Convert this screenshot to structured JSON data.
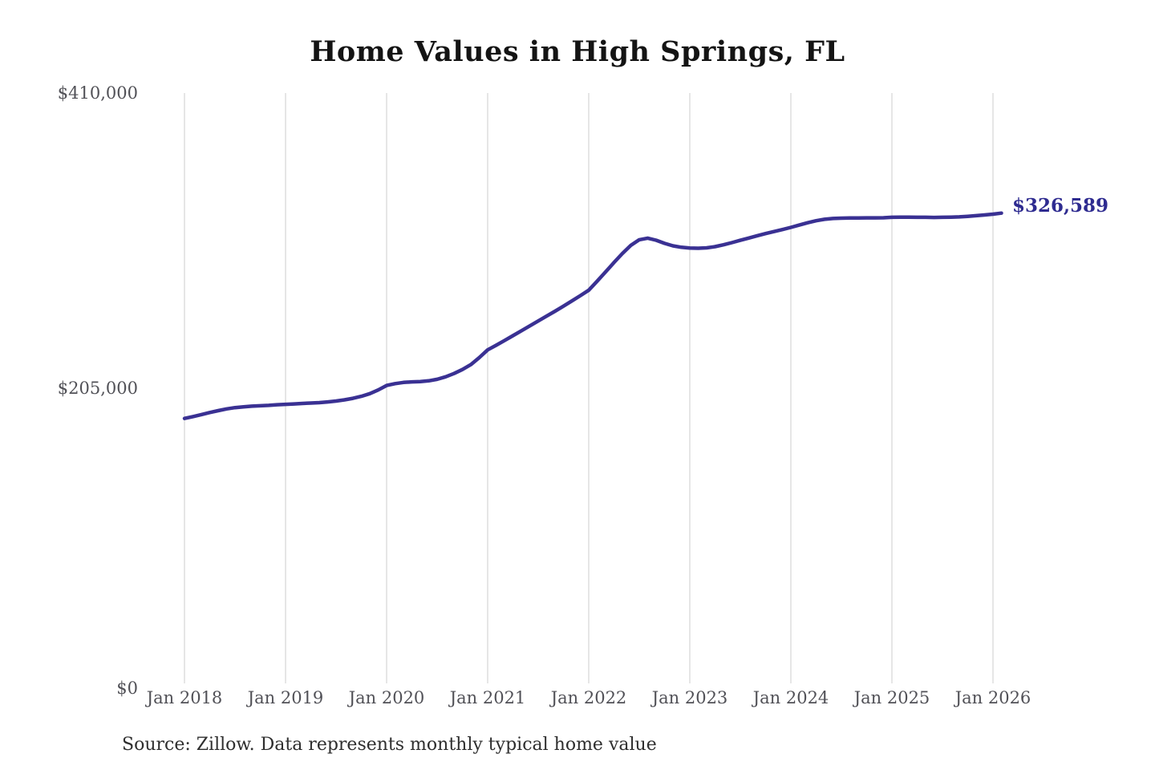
{
  "page": {
    "title": "Home Values in High Springs, FL",
    "latest_value_label": "$326,589",
    "source_note": "Source: Zillow. Data represents monthly typical home value"
  },
  "colors": {
    "line": "#3a3193",
    "latest_label": "#2e2b90",
    "gridline": "#cccccc",
    "axis_text": "#515157",
    "title_text": "#141414",
    "source_text": "#2e2e2e",
    "background": "#ffffff"
  },
  "chart_data": {
    "type": "line",
    "title": "Home Values in High Springs, FL",
    "xlabel": "",
    "ylabel": "",
    "ylim": [
      0,
      410000
    ],
    "grid": "vertical-only",
    "legend": "none",
    "yticks": [
      {
        "value": 0,
        "label": "$0"
      },
      {
        "value": 205000,
        "label": "$205,000"
      },
      {
        "value": 410000,
        "label": "$410,000"
      }
    ],
    "xticks": [
      "Jan 2018",
      "Jan 2019",
      "Jan 2020",
      "Jan 2021",
      "Jan 2022",
      "Jan 2023",
      "Jan 2024",
      "Jan 2025",
      "Jan 2026"
    ],
    "annotation": {
      "text": "$326,589",
      "x": "2026-02",
      "y": 326589
    },
    "series": [
      {
        "name": "Monthly typical home value",
        "x": [
          "2018-01",
          "2018-02",
          "2018-03",
          "2018-04",
          "2018-05",
          "2018-06",
          "2018-07",
          "2018-08",
          "2018-09",
          "2018-10",
          "2018-11",
          "2018-12",
          "2019-01",
          "2019-02",
          "2019-03",
          "2019-04",
          "2019-05",
          "2019-06",
          "2019-07",
          "2019-08",
          "2019-09",
          "2019-10",
          "2019-11",
          "2019-12",
          "2020-01",
          "2020-02",
          "2020-03",
          "2020-04",
          "2020-05",
          "2020-06",
          "2020-07",
          "2020-08",
          "2020-09",
          "2020-10",
          "2020-11",
          "2020-12",
          "2021-01",
          "2021-02",
          "2021-03",
          "2021-04",
          "2021-05",
          "2021-06",
          "2021-07",
          "2021-08",
          "2021-09",
          "2021-10",
          "2021-11",
          "2021-12",
          "2022-01",
          "2022-02",
          "2022-03",
          "2022-04",
          "2022-05",
          "2022-06",
          "2022-07",
          "2022-08",
          "2022-09",
          "2022-10",
          "2022-11",
          "2022-12",
          "2023-01",
          "2023-02",
          "2023-03",
          "2023-04",
          "2023-05",
          "2023-06",
          "2023-07",
          "2023-08",
          "2023-09",
          "2023-10",
          "2023-11",
          "2023-12",
          "2024-01",
          "2024-02",
          "2024-03",
          "2024-04",
          "2024-05",
          "2024-06",
          "2024-07",
          "2024-08",
          "2024-09",
          "2024-10",
          "2024-11",
          "2024-12",
          "2025-01",
          "2025-02",
          "2025-03",
          "2025-04",
          "2025-05",
          "2025-06",
          "2025-07",
          "2025-08",
          "2025-09",
          "2025-10",
          "2025-11",
          "2025-12",
          "2026-01",
          "2026-02"
        ],
        "values": [
          184000,
          185300,
          186700,
          188100,
          189400,
          190600,
          191500,
          192100,
          192500,
          192800,
          193100,
          193500,
          193800,
          194100,
          194400,
          194700,
          195000,
          195500,
          196100,
          196900,
          198000,
          199400,
          201200,
          203800,
          206900,
          208200,
          209000,
          209400,
          209600,
          210100,
          211200,
          212900,
          215200,
          218000,
          221400,
          226200,
          231600,
          234800,
          238100,
          241500,
          244900,
          248300,
          251700,
          255100,
          258500,
          262000,
          265600,
          269300,
          273100,
          279300,
          285800,
          292300,
          298600,
          304200,
          308100,
          309200,
          307800,
          305600,
          303900,
          302900,
          302400,
          302200,
          302500,
          303300,
          304600,
          306100,
          307700,
          309300,
          310900,
          312400,
          313800,
          315200,
          316700,
          318300,
          319900,
          321300,
          322300,
          322900,
          323100,
          323200,
          323200,
          323300,
          323300,
          323400,
          323700,
          323800,
          323800,
          323700,
          323700,
          323600,
          323700,
          323800,
          324000,
          324400,
          324800,
          325300,
          325900,
          326589
        ]
      }
    ]
  }
}
